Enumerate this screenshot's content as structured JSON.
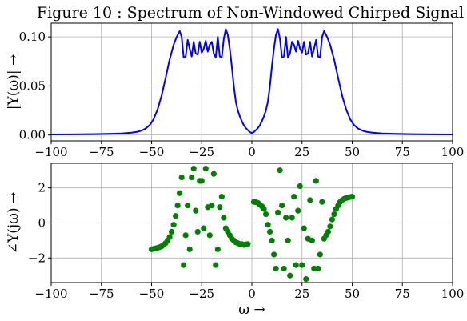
{
  "chart_data": [
    {
      "type": "line",
      "title": "Figure 10 : Spectrum of Non-Windowed Chirped Signal",
      "ylabel": "|Y(ω)| →",
      "xlabel": "",
      "xlim": [
        -100,
        100
      ],
      "ylim": [
        -0.006,
        0.114
      ],
      "grid": true,
      "color": "#0000ff",
      "xticks": [
        -100,
        -75,
        -50,
        -25,
        0,
        25,
        50,
        75,
        100
      ],
      "xtick_labels": [
        "−100",
        "−75",
        "−50",
        "−25",
        "0",
        "25",
        "50",
        "75",
        "100"
      ],
      "yticks": [
        0.0,
        0.05,
        0.1
      ],
      "ytick_labels": [
        "0.00",
        "0.05",
        "0.10"
      ],
      "series": [
        {
          "x": [
            -100,
            -90,
            -80,
            -70,
            -65,
            -60,
            -57,
            -55,
            -53,
            -51,
            -49,
            -47,
            -45,
            -43,
            -41,
            -39,
            -37.5,
            -36,
            -35,
            -34,
            -33,
            -32,
            -31,
            -30,
            -29,
            -28,
            -27,
            -26,
            -25,
            -24,
            -23,
            -22,
            -21,
            -20,
            -19,
            -18,
            -17,
            -16,
            -15,
            -14,
            -13,
            -12,
            -11,
            -10,
            -9,
            -8,
            -7,
            -6,
            -5,
            -4,
            -3,
            -2,
            -1,
            0,
            1,
            2,
            3,
            4,
            5,
            6,
            7,
            8,
            9,
            10,
            11,
            12,
            13,
            14,
            15,
            16,
            17,
            18,
            19,
            20,
            21,
            22,
            23,
            24,
            25,
            26,
            27,
            28,
            29,
            30,
            31,
            32,
            33,
            34,
            35,
            36,
            37.5,
            39,
            41,
            43,
            45,
            47,
            49,
            51,
            53,
            55,
            57,
            60,
            65,
            70,
            80,
            90,
            100
          ],
          "y": [
            0.0005,
            0.0006,
            0.0008,
            0.0012,
            0.0016,
            0.0024,
            0.0033,
            0.0045,
            0.0065,
            0.01,
            0.016,
            0.026,
            0.04,
            0.058,
            0.077,
            0.092,
            0.1,
            0.106,
            0.1,
            0.079,
            0.08,
            0.097,
            0.088,
            0.08,
            0.095,
            0.083,
            0.082,
            0.095,
            0.084,
            0.088,
            0.096,
            0.085,
            0.092,
            0.095,
            0.083,
            0.079,
            0.1,
            0.08,
            0.079,
            0.098,
            0.108,
            0.102,
            0.088,
            0.07,
            0.05,
            0.034,
            0.025,
            0.019,
            0.014,
            0.01,
            0.007,
            0.005,
            0.003,
            0.002,
            0.003,
            0.005,
            0.007,
            0.01,
            0.014,
            0.019,
            0.025,
            0.034,
            0.05,
            0.07,
            0.088,
            0.102,
            0.108,
            0.098,
            0.079,
            0.08,
            0.1,
            0.079,
            0.083,
            0.095,
            0.092,
            0.085,
            0.096,
            0.088,
            0.084,
            0.095,
            0.082,
            0.083,
            0.095,
            0.08,
            0.088,
            0.097,
            0.08,
            0.079,
            0.1,
            0.106,
            0.1,
            0.092,
            0.077,
            0.058,
            0.04,
            0.026,
            0.016,
            0.01,
            0.0065,
            0.0045,
            0.0033,
            0.0024,
            0.0016,
            0.0012,
            0.0008,
            0.0006,
            0.0005
          ]
        }
      ]
    },
    {
      "type": "scatter",
      "title": "",
      "ylabel": "∠Y(jω) →",
      "xlabel": "ω →",
      "xlim": [
        -100,
        100
      ],
      "ylim": [
        -3.4,
        3.4
      ],
      "grid": true,
      "color": "#008000",
      "xticks": [
        -100,
        -75,
        -50,
        -25,
        0,
        25,
        50,
        75,
        100
      ],
      "xtick_labels": [
        "−100",
        "−75",
        "−50",
        "−25",
        "0",
        "25",
        "50",
        "75",
        "100"
      ],
      "yticks": [
        -2,
        0,
        2
      ],
      "ytick_labels": [
        "−2",
        "0",
        "2"
      ],
      "series": [
        {
          "x": [
            -50,
            -49,
            -48,
            -47,
            -46,
            -45,
            -44,
            -43,
            -42,
            -41,
            -40,
            -39,
            -38,
            -37,
            -36,
            -35,
            -34,
            -33,
            -32,
            -31,
            -30,
            -29,
            -28,
            -27,
            -26,
            -25,
            -24,
            -23,
            -22,
            -21,
            -20,
            -19,
            -18,
            -17,
            -16,
            -15,
            -14,
            -13,
            -12,
            -11,
            -10,
            -9,
            -8,
            -7,
            -6,
            -5,
            -4,
            -3,
            -2,
            1,
            2,
            3,
            4,
            5,
            6,
            7,
            8,
            9,
            10,
            11,
            12,
            13,
            14,
            15,
            16,
            17,
            18,
            19,
            20,
            21,
            22,
            23,
            24,
            25,
            26,
            27,
            28,
            29,
            30,
            31,
            32,
            33,
            34,
            35,
            36,
            37,
            38,
            39,
            40,
            41,
            42,
            43,
            44,
            45,
            46,
            47,
            48,
            49,
            50
          ],
          "y": [
            -1.5,
            -1.48,
            -1.45,
            -1.42,
            -1.38,
            -1.33,
            -1.25,
            -1.15,
            -1.0,
            -0.8,
            -0.5,
            -0.1,
            0.4,
            1.0,
            1.7,
            2.6,
            -2.4,
            -0.7,
            1.0,
            -1.5,
            2.6,
            3.1,
            0.7,
            -0.5,
            2.4,
            2.4,
            -0.3,
            3.1,
            0.9,
            -0.7,
            1.0,
            2.8,
            -2.4,
            -1.5,
            0.9,
            1.5,
            0.3,
            -0.3,
            -0.5,
            -0.7,
            -0.9,
            -1.0,
            -1.1,
            -1.15,
            -1.2,
            -1.2,
            -1.25,
            -1.22,
            -1.2,
            1.2,
            1.18,
            1.15,
            1.05,
            0.95,
            0.8,
            0.5,
            -0.1,
            -0.5,
            -1.0,
            -1.8,
            -2.6,
            0.6,
            3.0,
            1.0,
            -2.6,
            0.3,
            -1.0,
            -3.0,
            0.3,
            1.5,
            -2.4,
            0.7,
            2.1,
            -2.4,
            -0.3,
            -3.2,
            -0.9,
            1.3,
            -1.0,
            -2.6,
            2.4,
            -2.6,
            -1.8,
            1.2,
            -0.9,
            -0.7,
            -0.5,
            -0.2,
            0.2,
            0.5,
            0.8,
            1.0,
            1.2,
            1.3,
            1.38,
            1.42,
            1.45,
            1.48,
            1.5
          ]
        }
      ]
    }
  ]
}
